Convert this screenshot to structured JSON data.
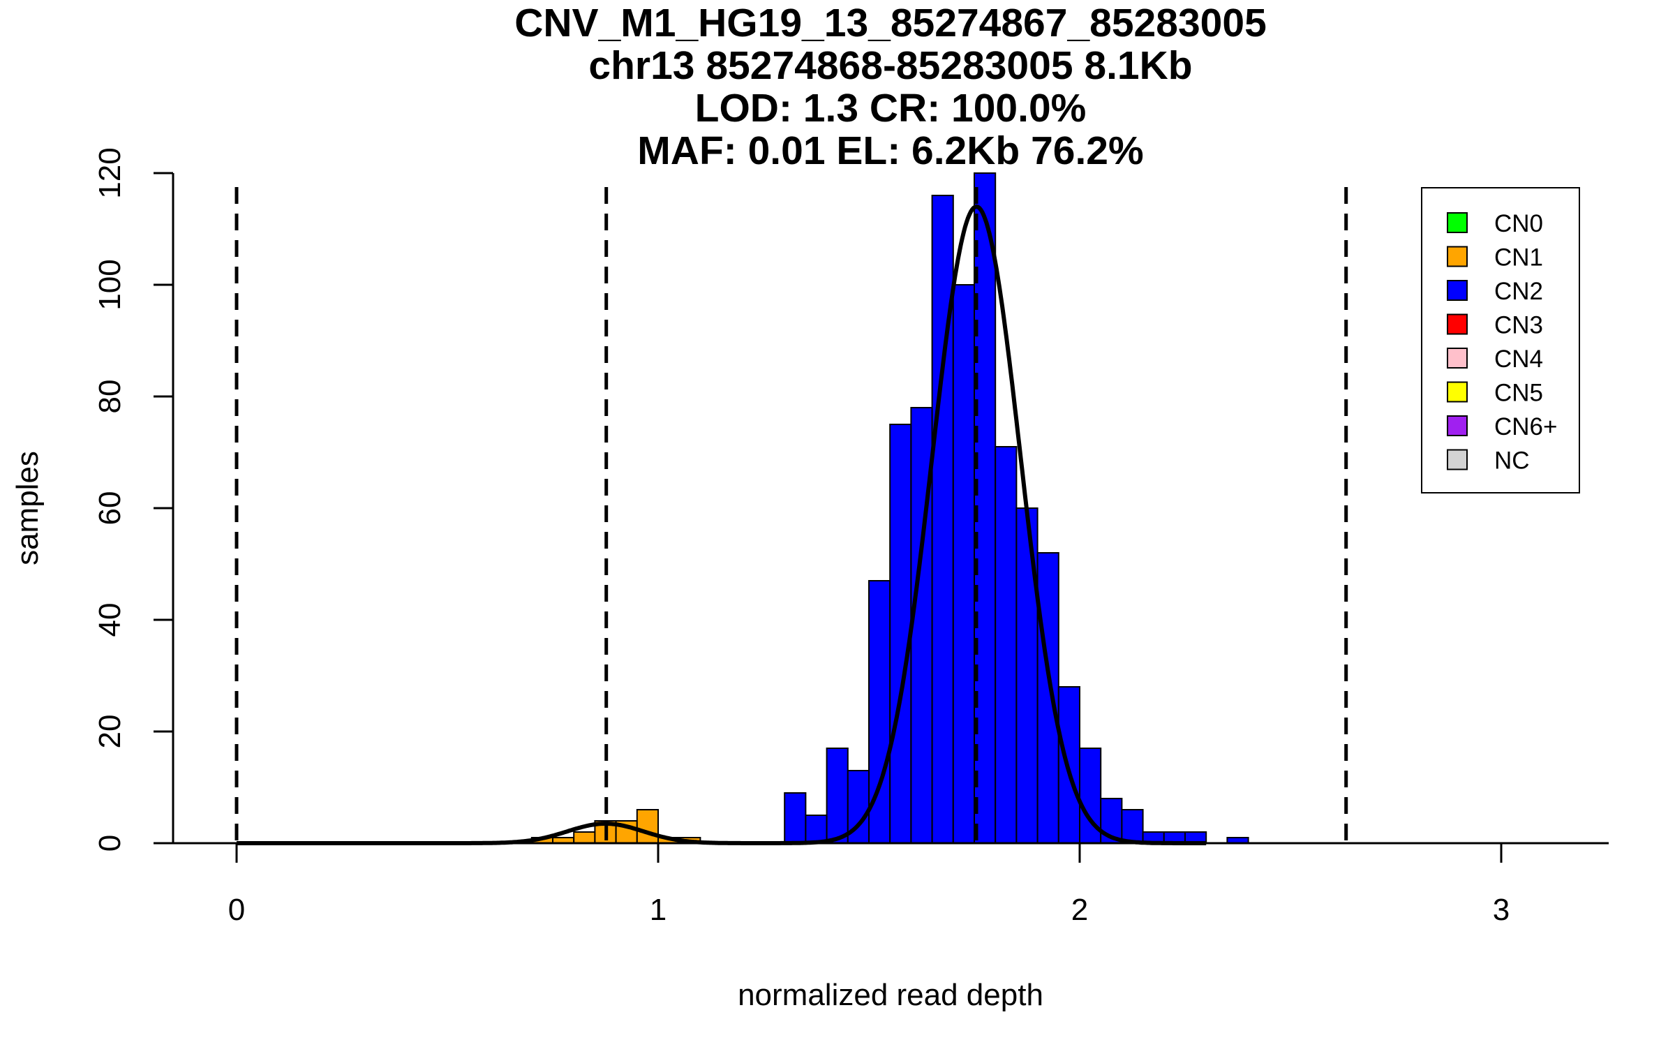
{
  "chart_data": {
    "type": "histogram",
    "title_lines": [
      "CNV_M1_HG19_13_85274867_85283005",
      "chr13 85274868-85283005 8.1Kb",
      "LOD: 1.3 CR: 100.0%",
      "MAF: 0.01 EL: 6.2Kb 76.2%"
    ],
    "xlabel": "normalized read depth",
    "ylabel": "samples",
    "xlim": [
      -0.15,
      3.25
    ],
    "ylim": [
      0,
      120
    ],
    "xticks": [
      "0",
      "1",
      "2",
      "3"
    ],
    "yticks": [
      "0",
      "20",
      "40",
      "60",
      "80",
      "100",
      "120"
    ],
    "bin_width": 0.05,
    "series": [
      {
        "name": "CN1",
        "color": "#ffa500",
        "bins": [
          {
            "x0": 0.7,
            "count": 1
          },
          {
            "x0": 0.75,
            "count": 1
          },
          {
            "x0": 0.8,
            "count": 2
          },
          {
            "x0": 0.85,
            "count": 4
          },
          {
            "x0": 0.9,
            "count": 4
          },
          {
            "x0": 0.95,
            "count": 6
          },
          {
            "x0": 1.0,
            "count": 1
          },
          {
            "x0": 1.05,
            "count": 1
          }
        ]
      },
      {
        "name": "CN2",
        "color": "#0000ff",
        "bins": [
          {
            "x0": 1.3,
            "count": 9
          },
          {
            "x0": 1.35,
            "count": 5
          },
          {
            "x0": 1.4,
            "count": 17
          },
          {
            "x0": 1.45,
            "count": 13
          },
          {
            "x0": 1.5,
            "count": 47
          },
          {
            "x0": 1.55,
            "count": 75
          },
          {
            "x0": 1.6,
            "count": 78
          },
          {
            "x0": 1.65,
            "count": 116
          },
          {
            "x0": 1.7,
            "count": 100
          },
          {
            "x0": 1.75,
            "count": 120
          },
          {
            "x0": 1.8,
            "count": 71
          },
          {
            "x0": 1.85,
            "count": 60
          },
          {
            "x0": 1.9,
            "count": 52
          },
          {
            "x0": 1.95,
            "count": 28
          },
          {
            "x0": 2.0,
            "count": 17
          },
          {
            "x0": 2.05,
            "count": 8
          },
          {
            "x0": 2.1,
            "count": 6
          },
          {
            "x0": 2.15,
            "count": 2
          },
          {
            "x0": 2.2,
            "count": 2
          },
          {
            "x0": 2.25,
            "count": 2
          },
          {
            "x0": 2.35,
            "count": 1
          }
        ]
      }
    ],
    "fitted_curves": [
      {
        "name": "CN1 fit",
        "mean": 0.875,
        "sd": 0.09,
        "peak": 3.5
      },
      {
        "name": "CN2 fit",
        "mean": 1.755,
        "sd": 0.105,
        "peak": 114
      }
    ],
    "vlines": [
      0,
      0.877,
      1.755,
      2.632
    ],
    "legend": {
      "position": "top-right",
      "items": [
        {
          "label": "CN0",
          "color": "#00ff00"
        },
        {
          "label": "CN1",
          "color": "#ffa500"
        },
        {
          "label": "CN2",
          "color": "#0000ff"
        },
        {
          "label": "CN3",
          "color": "#ff0000"
        },
        {
          "label": "CN4",
          "color": "#ffc0cb"
        },
        {
          "label": "CN5",
          "color": "#ffff00"
        },
        {
          "label": "CN6+",
          "color": "#a020f0"
        },
        {
          "label": "NC",
          "color": "#d3d3d3"
        }
      ]
    }
  }
}
